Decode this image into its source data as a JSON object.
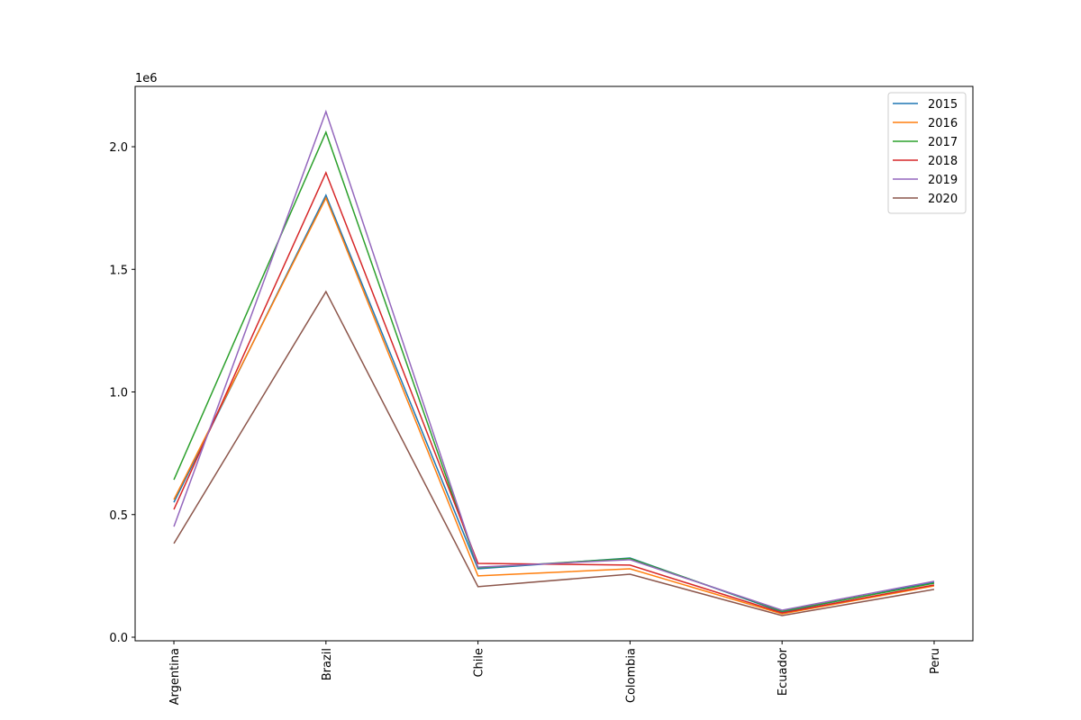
{
  "chart_data": {
    "type": "line",
    "categories": [
      "Argentina",
      "Brazil",
      "Chile",
      "Colombia",
      "Ecuador",
      "Peru"
    ],
    "series": [
      {
        "name": "2015",
        "color": "#1f77b4",
        "values": [
          550000,
          1802000,
          279000,
          323000,
          103000,
          224000
        ]
      },
      {
        "name": "2016",
        "color": "#ff7f0e",
        "values": [
          561000,
          1791000,
          250000,
          279000,
          95000,
          209000
        ]
      },
      {
        "name": "2017",
        "color": "#2ca02c",
        "values": [
          642000,
          2059000,
          283000,
          321000,
          106000,
          220000
        ]
      },
      {
        "name": "2018",
        "color": "#d62728",
        "values": [
          521000,
          1894000,
          301000,
          294000,
          99000,
          213000
        ]
      },
      {
        "name": "2019",
        "color": "#9467bd",
        "values": [
          451000,
          2143000,
          286000,
          316000,
          110000,
          228000
        ]
      },
      {
        "name": "2020",
        "color": "#8c564b",
        "values": [
          382000,
          1409000,
          206000,
          257000,
          88000,
          195000
        ]
      }
    ],
    "ylim": [
      -14700,
      2246000
    ],
    "yticks": [
      {
        "value": 0,
        "label": "0.0"
      },
      {
        "value": 500000,
        "label": "0.5"
      },
      {
        "value": 1000000,
        "label": "1.0"
      },
      {
        "value": 1500000,
        "label": "1.5"
      },
      {
        "value": 2000000,
        "label": "2.0"
      }
    ],
    "y_offset_label": "1e6",
    "legend": "upper right"
  }
}
